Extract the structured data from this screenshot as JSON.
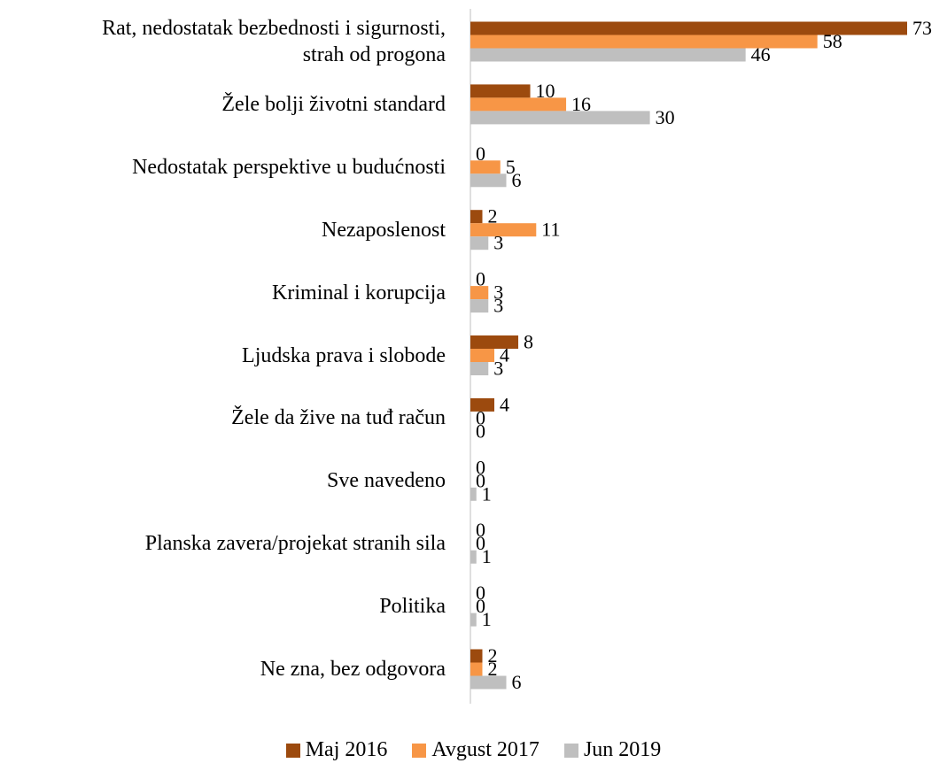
{
  "chart_data": {
    "type": "bar",
    "orientation": "horizontal",
    "categories": [
      "Rat, nedostatak bezbednosti i sigurnosti,\nstrah od progona",
      "Žele bolji životni standard",
      "Nedostatak perspektive u budućnosti",
      "Nezaposlenost",
      "Kriminal i korupcija",
      "Ljudska prava i slobode",
      "Žele da žive na tuđ račun",
      "Sve navedeno",
      "Planska zavera/projekat stranih sila",
      "Politika",
      "Ne zna, bez odgovora"
    ],
    "series": [
      {
        "name": "Maj 2016",
        "color": "#9c4a0e",
        "values": [
          73,
          10,
          0,
          2,
          0,
          8,
          4,
          0,
          0,
          0,
          2
        ]
      },
      {
        "name": "Avgust 2017",
        "color": "#f79646",
        "values": [
          58,
          16,
          5,
          11,
          3,
          4,
          0,
          0,
          0,
          0,
          2
        ]
      },
      {
        "name": "Jun 2019",
        "color": "#bfbfbf",
        "values": [
          46,
          30,
          6,
          3,
          3,
          3,
          0,
          1,
          1,
          1,
          6
        ]
      }
    ],
    "legend": "bottom"
  }
}
